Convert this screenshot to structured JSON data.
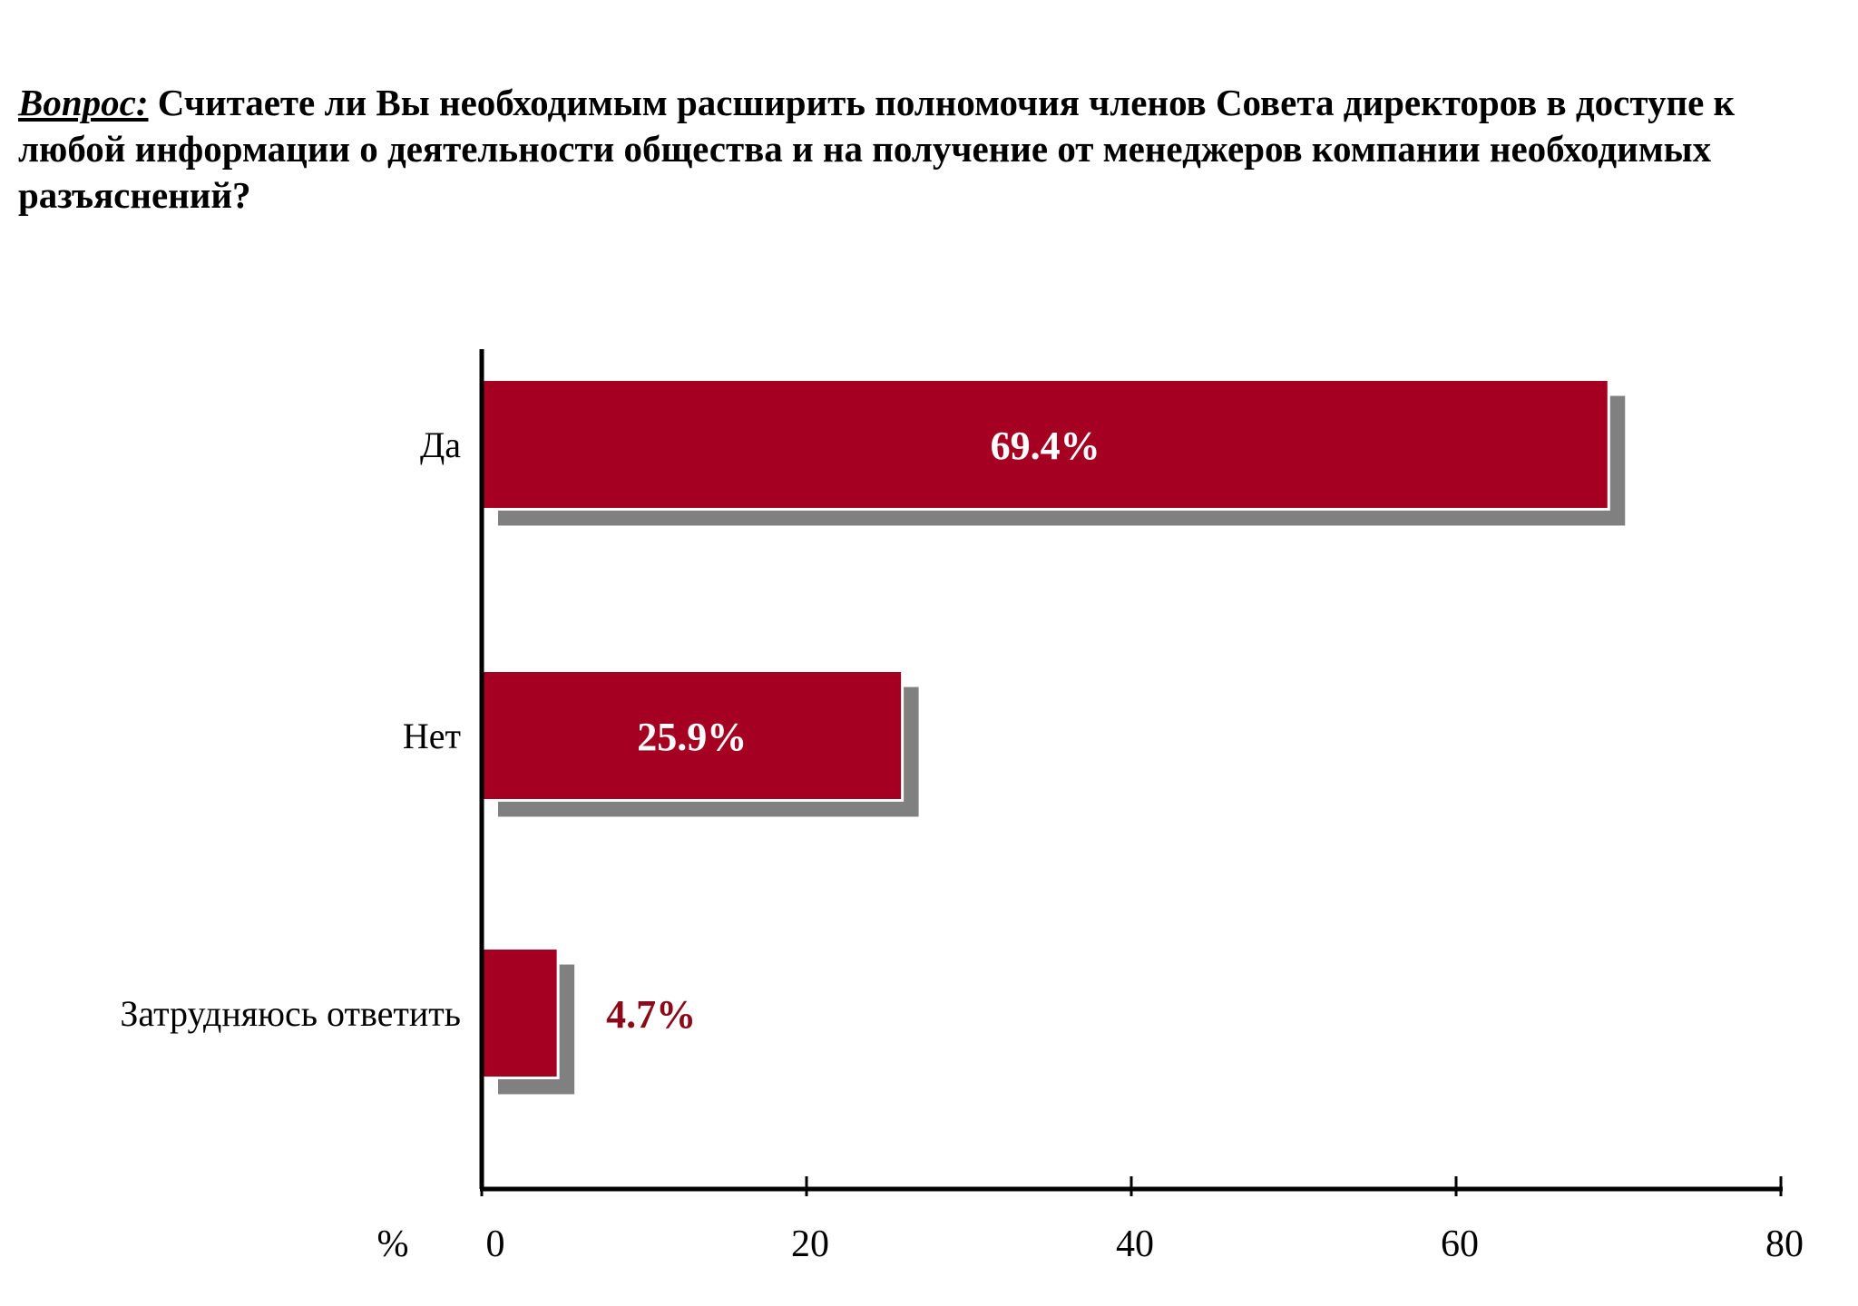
{
  "question": {
    "prefix": "Вопрос:",
    "text": "Считаете ли Вы необходимым расширить полномочия членов Совета директоров в доступе к любой информации о деятельности общества и на получение от менеджеров компании необходимых разъяснений?"
  },
  "colors": {
    "bar": "#a50021",
    "shadow": "#808080",
    "axis": "#000000",
    "outside_label": "#8b0a1a"
  },
  "chart_data": {
    "type": "bar",
    "orientation": "horizontal",
    "categories": [
      "Да",
      "Нет",
      "Затрудняюсь ответить"
    ],
    "values": [
      69.4,
      25.9,
      4.7
    ],
    "value_labels": [
      "69.4%",
      "25.9%",
      "4.7%"
    ],
    "x_ticks": [
      "0",
      "20",
      "40",
      "60",
      "80"
    ],
    "x_tick_values": [
      0,
      20,
      40,
      60,
      80
    ],
    "xlabel": "%",
    "xlim": [
      0,
      80
    ],
    "grid": false,
    "legend": "none"
  }
}
